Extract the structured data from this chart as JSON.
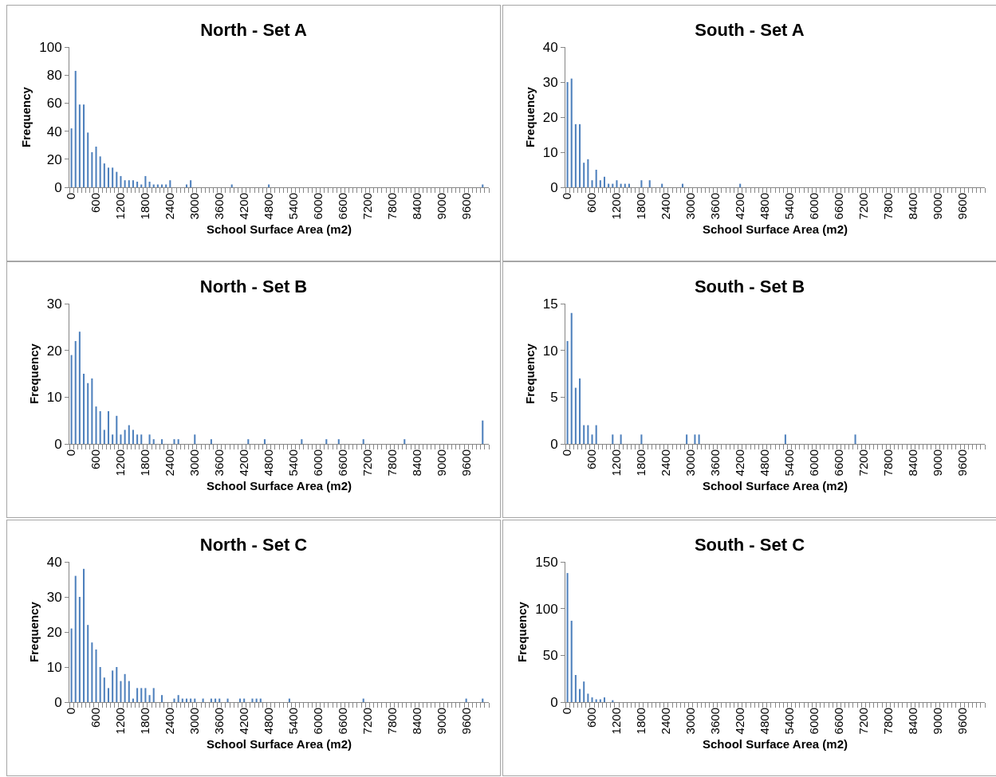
{
  "chart_data": [
    {
      "type": "bar",
      "title": "North - Set A",
      "xlabel": "School Surface Area (m2)",
      "ylabel": "Frequency",
      "color": "#4f81bd",
      "ylim": [
        0,
        100
      ],
      "yticks": [
        0,
        20,
        40,
        60,
        80,
        100
      ],
      "categories": [
        "0",
        null,
        null,
        null,
        null,
        null,
        "600",
        null,
        null,
        null,
        null,
        null,
        "1200",
        null,
        null,
        null,
        null,
        null,
        "1800",
        null,
        null,
        null,
        null,
        null,
        "2400",
        null,
        null,
        null,
        null,
        null,
        "3000",
        null,
        null,
        null,
        null,
        null,
        "3600",
        null,
        null,
        null,
        null,
        null,
        "4200",
        null,
        null,
        null,
        null,
        null,
        "4800",
        null,
        null,
        null,
        null,
        null,
        "5400",
        null,
        null,
        null,
        null,
        null,
        "6000",
        null,
        null,
        null,
        null,
        null,
        "6600",
        null,
        null,
        null,
        null,
        null,
        "7200",
        null,
        null,
        null,
        null,
        null,
        "7800",
        null,
        null,
        null,
        null,
        null,
        "8400",
        null,
        null,
        null,
        null,
        null,
        "9000",
        null,
        null,
        null,
        null,
        null,
        "9600",
        null,
        null,
        null,
        null,
        null
      ],
      "values": [
        42,
        83,
        59,
        59,
        39,
        25,
        29,
        22,
        17,
        14,
        14,
        11,
        8,
        5,
        5,
        5,
        4,
        2,
        8,
        4,
        2,
        2,
        2,
        2,
        5,
        0,
        0,
        0,
        2,
        5,
        0,
        0,
        0,
        0,
        0,
        0,
        0,
        0,
        0,
        2,
        0,
        0,
        0,
        0,
        0,
        0,
        0,
        0,
        2,
        0,
        0,
        0,
        0,
        0,
        0,
        0,
        0,
        0,
        0,
        0,
        0,
        0,
        0,
        0,
        0,
        0,
        0,
        0,
        0,
        0,
        0,
        0,
        0,
        0,
        0,
        0,
        0,
        0,
        0,
        0,
        0,
        0,
        0,
        0,
        0,
        0,
        0,
        0,
        0,
        0,
        0,
        0,
        0,
        0,
        0,
        0,
        0,
        0,
        0,
        0,
        2,
        0
      ]
    },
    {
      "type": "bar",
      "title": "South - Set A",
      "xlabel": "School Surface Area (m2)",
      "ylabel": "Frequency",
      "color": "#4f81bd",
      "ylim": [
        0,
        40
      ],
      "yticks": [
        0,
        10,
        20,
        30,
        40
      ],
      "categories": [
        "0",
        null,
        null,
        null,
        null,
        null,
        "600",
        null,
        null,
        null,
        null,
        null,
        "1200",
        null,
        null,
        null,
        null,
        null,
        "1800",
        null,
        null,
        null,
        null,
        null,
        "2400",
        null,
        null,
        null,
        null,
        null,
        "3000",
        null,
        null,
        null,
        null,
        null,
        "3600",
        null,
        null,
        null,
        null,
        null,
        "4200",
        null,
        null,
        null,
        null,
        null,
        "4800",
        null,
        null,
        null,
        null,
        null,
        "5400",
        null,
        null,
        null,
        null,
        null,
        "6000",
        null,
        null,
        null,
        null,
        null,
        "6600",
        null,
        null,
        null,
        null,
        null,
        "7200",
        null,
        null,
        null,
        null,
        null,
        "7800",
        null,
        null,
        null,
        null,
        null,
        "8400",
        null,
        null,
        null,
        null,
        null,
        "9000",
        null,
        null,
        null,
        null,
        null,
        "9600",
        null,
        null,
        null,
        null,
        null
      ],
      "values": [
        30,
        31,
        18,
        18,
        7,
        8,
        2,
        5,
        2,
        3,
        1,
        1,
        2,
        1,
        1,
        1,
        0,
        0,
        2,
        0,
        2,
        0,
        0,
        1,
        0,
        0,
        0,
        0,
        1,
        0,
        0,
        0,
        0,
        0,
        0,
        0,
        0,
        0,
        0,
        0,
        0,
        0,
        1,
        0,
        0,
        0,
        0,
        0,
        0,
        0,
        0,
        0,
        0,
        0,
        0,
        0,
        0,
        0,
        0,
        0,
        0,
        0,
        0,
        0,
        0,
        0,
        0,
        0,
        0,
        0,
        0,
        0,
        0,
        0,
        0,
        0,
        0,
        0,
        0,
        0,
        0,
        0,
        0,
        0,
        0,
        0,
        0,
        0,
        0,
        0,
        0,
        0,
        0,
        0,
        0,
        0,
        0,
        0,
        0,
        0,
        0,
        0
      ]
    },
    {
      "type": "bar",
      "title": "North - Set B",
      "xlabel": "School Surface Area (m2)",
      "ylabel": "Frequency",
      "color": "#4f81bd",
      "ylim": [
        0,
        30
      ],
      "yticks": [
        0,
        10,
        20,
        30
      ],
      "categories": [
        "0",
        null,
        null,
        null,
        null,
        null,
        "600",
        null,
        null,
        null,
        null,
        null,
        "1200",
        null,
        null,
        null,
        null,
        null,
        "1800",
        null,
        null,
        null,
        null,
        null,
        "2400",
        null,
        null,
        null,
        null,
        null,
        "3000",
        null,
        null,
        null,
        null,
        null,
        "3600",
        null,
        null,
        null,
        null,
        null,
        "4200",
        null,
        null,
        null,
        null,
        null,
        "4800",
        null,
        null,
        null,
        null,
        null,
        "5400",
        null,
        null,
        null,
        null,
        null,
        "6000",
        null,
        null,
        null,
        null,
        null,
        "6600",
        null,
        null,
        null,
        null,
        null,
        "7200",
        null,
        null,
        null,
        null,
        null,
        "7800",
        null,
        null,
        null,
        null,
        null,
        "8400",
        null,
        null,
        null,
        null,
        null,
        "9000",
        null,
        null,
        null,
        null,
        null,
        "9600",
        null,
        null,
        null,
        null,
        null
      ],
      "values": [
        19,
        22,
        24,
        15,
        13,
        14,
        8,
        7,
        3,
        7,
        2,
        6,
        2,
        3,
        4,
        3,
        2,
        2,
        0,
        2,
        1,
        0,
        1,
        0,
        0,
        1,
        1,
        0,
        0,
        0,
        2,
        0,
        0,
        0,
        1,
        0,
        0,
        0,
        0,
        0,
        0,
        0,
        0,
        1,
        0,
        0,
        0,
        1,
        0,
        0,
        0,
        0,
        0,
        0,
        0,
        0,
        1,
        0,
        0,
        0,
        0,
        0,
        1,
        0,
        0,
        1,
        0,
        0,
        0,
        0,
        0,
        1,
        0,
        0,
        0,
        0,
        0,
        0,
        0,
        0,
        0,
        1,
        0,
        0,
        0,
        0,
        0,
        0,
        0,
        0,
        0,
        0,
        0,
        0,
        0,
        0,
        0,
        0,
        0,
        0,
        5,
        0
      ]
    },
    {
      "type": "bar",
      "title": "South - Set B",
      "xlabel": "School Surface Area (m2)",
      "ylabel": "Frequency",
      "color": "#4f81bd",
      "ylim": [
        0,
        15
      ],
      "yticks": [
        0,
        5,
        10,
        15
      ],
      "categories": [
        "0",
        null,
        null,
        null,
        null,
        null,
        "600",
        null,
        null,
        null,
        null,
        null,
        "1200",
        null,
        null,
        null,
        null,
        null,
        "1800",
        null,
        null,
        null,
        null,
        null,
        "2400",
        null,
        null,
        null,
        null,
        null,
        "3000",
        null,
        null,
        null,
        null,
        null,
        "3600",
        null,
        null,
        null,
        null,
        null,
        "4200",
        null,
        null,
        null,
        null,
        null,
        "4800",
        null,
        null,
        null,
        null,
        null,
        "5400",
        null,
        null,
        null,
        null,
        null,
        "6000",
        null,
        null,
        null,
        null,
        null,
        "6600",
        null,
        null,
        null,
        null,
        null,
        "7200",
        null,
        null,
        null,
        null,
        null,
        "7800",
        null,
        null,
        null,
        null,
        null,
        "8400",
        null,
        null,
        null,
        null,
        null,
        "9000",
        null,
        null,
        null,
        null,
        null,
        "9600",
        null,
        null,
        null,
        null,
        null
      ],
      "values": [
        11,
        14,
        6,
        7,
        2,
        2,
        1,
        2,
        0,
        0,
        0,
        1,
        0,
        1,
        0,
        0,
        0,
        0,
        1,
        0,
        0,
        0,
        0,
        0,
        0,
        0,
        0,
        0,
        0,
        1,
        0,
        1,
        1,
        0,
        0,
        0,
        0,
        0,
        0,
        0,
        0,
        0,
        0,
        0,
        0,
        0,
        0,
        0,
        0,
        0,
        0,
        0,
        0,
        1,
        0,
        0,
        0,
        0,
        0,
        0,
        0,
        0,
        0,
        0,
        0,
        0,
        0,
        0,
        0,
        0,
        1,
        0,
        0,
        0,
        0,
        0,
        0,
        0,
        0,
        0,
        0,
        0,
        0,
        0,
        0,
        0,
        0,
        0,
        0,
        0,
        0,
        0,
        0,
        0,
        0,
        0,
        0,
        0,
        0,
        0,
        0,
        0
      ]
    },
    {
      "type": "bar",
      "title": "North - Set C",
      "xlabel": "School Surface Area (m2)",
      "ylabel": "Frequency",
      "color": "#4f81bd",
      "ylim": [
        0,
        40
      ],
      "yticks": [
        0,
        10,
        20,
        30,
        40
      ],
      "categories": [
        "0",
        null,
        null,
        null,
        null,
        null,
        "600",
        null,
        null,
        null,
        null,
        null,
        "1200",
        null,
        null,
        null,
        null,
        null,
        "1800",
        null,
        null,
        null,
        null,
        null,
        "2400",
        null,
        null,
        null,
        null,
        null,
        "3000",
        null,
        null,
        null,
        null,
        null,
        "3600",
        null,
        null,
        null,
        null,
        null,
        "4200",
        null,
        null,
        null,
        null,
        null,
        "4800",
        null,
        null,
        null,
        null,
        null,
        "5400",
        null,
        null,
        null,
        null,
        null,
        "6000",
        null,
        null,
        null,
        null,
        null,
        "6600",
        null,
        null,
        null,
        null,
        null,
        "7200",
        null,
        null,
        null,
        null,
        null,
        "7800",
        null,
        null,
        null,
        null,
        null,
        "8400",
        null,
        null,
        null,
        null,
        null,
        "9000",
        null,
        null,
        null,
        null,
        null,
        "9600",
        null,
        null,
        null,
        null,
        null
      ],
      "values": [
        21,
        36,
        30,
        38,
        22,
        17,
        15,
        10,
        7,
        4,
        9,
        10,
        6,
        8,
        6,
        1,
        4,
        4,
        4,
        2,
        4,
        0,
        2,
        0,
        0,
        1,
        2,
        1,
        1,
        1,
        1,
        0,
        1,
        0,
        1,
        1,
        1,
        0,
        1,
        0,
        0,
        1,
        1,
        0,
        1,
        1,
        1,
        0,
        0,
        0,
        0,
        0,
        0,
        1,
        0,
        0,
        0,
        0,
        0,
        0,
        0,
        0,
        0,
        0,
        0,
        0,
        0,
        0,
        0,
        0,
        0,
        1,
        0,
        0,
        0,
        0,
        0,
        0,
        0,
        0,
        0,
        0,
        0,
        0,
        0,
        0,
        0,
        0,
        0,
        0,
        0,
        0,
        0,
        0,
        0,
        0,
        1,
        0,
        0,
        0,
        1,
        0
      ]
    },
    {
      "type": "bar",
      "title": "South - Set C",
      "xlabel": "School Surface Area (m2)",
      "ylabel": "Frequency",
      "color": "#4f81bd",
      "ylim": [
        0,
        150
      ],
      "yticks": [
        0,
        50,
        100,
        150
      ],
      "categories": [
        "0",
        null,
        null,
        null,
        null,
        null,
        "600",
        null,
        null,
        null,
        null,
        null,
        "1200",
        null,
        null,
        null,
        null,
        null,
        "1800",
        null,
        null,
        null,
        null,
        null,
        "2400",
        null,
        null,
        null,
        null,
        null,
        "3000",
        null,
        null,
        null,
        null,
        null,
        "3600",
        null,
        null,
        null,
        null,
        null,
        "4200",
        null,
        null,
        null,
        null,
        null,
        "4800",
        null,
        null,
        null,
        null,
        null,
        "5400",
        null,
        null,
        null,
        null,
        null,
        "6000",
        null,
        null,
        null,
        null,
        null,
        "6600",
        null,
        null,
        null,
        null,
        null,
        "7200",
        null,
        null,
        null,
        null,
        null,
        "7800",
        null,
        null,
        null,
        null,
        null,
        "8400",
        null,
        null,
        null,
        null,
        null,
        "9000",
        null,
        null,
        null,
        null,
        null,
        "9600",
        null,
        null,
        null,
        null,
        null
      ],
      "values": [
        138,
        87,
        29,
        14,
        22,
        9,
        5,
        3,
        3,
        5,
        0,
        2,
        0,
        0,
        0,
        0,
        0,
        0,
        0,
        0,
        0,
        0,
        0,
        0,
        0,
        0,
        0,
        0,
        0,
        0,
        0,
        0,
        0,
        0,
        0,
        0,
        0,
        0,
        0,
        0,
        0,
        0,
        0,
        0,
        0,
        0,
        0,
        0,
        0,
        0,
        0,
        0,
        0,
        0,
        0,
        0,
        0,
        0,
        0,
        0,
        0,
        0,
        0,
        0,
        0,
        0,
        0,
        0,
        0,
        0,
        0,
        0,
        0,
        0,
        0,
        0,
        0,
        0,
        0,
        0,
        0,
        0,
        0,
        0,
        0,
        0,
        0,
        0,
        0,
        0,
        0,
        0,
        0,
        0,
        0,
        0,
        0,
        0,
        0,
        0,
        0,
        0
      ]
    }
  ]
}
